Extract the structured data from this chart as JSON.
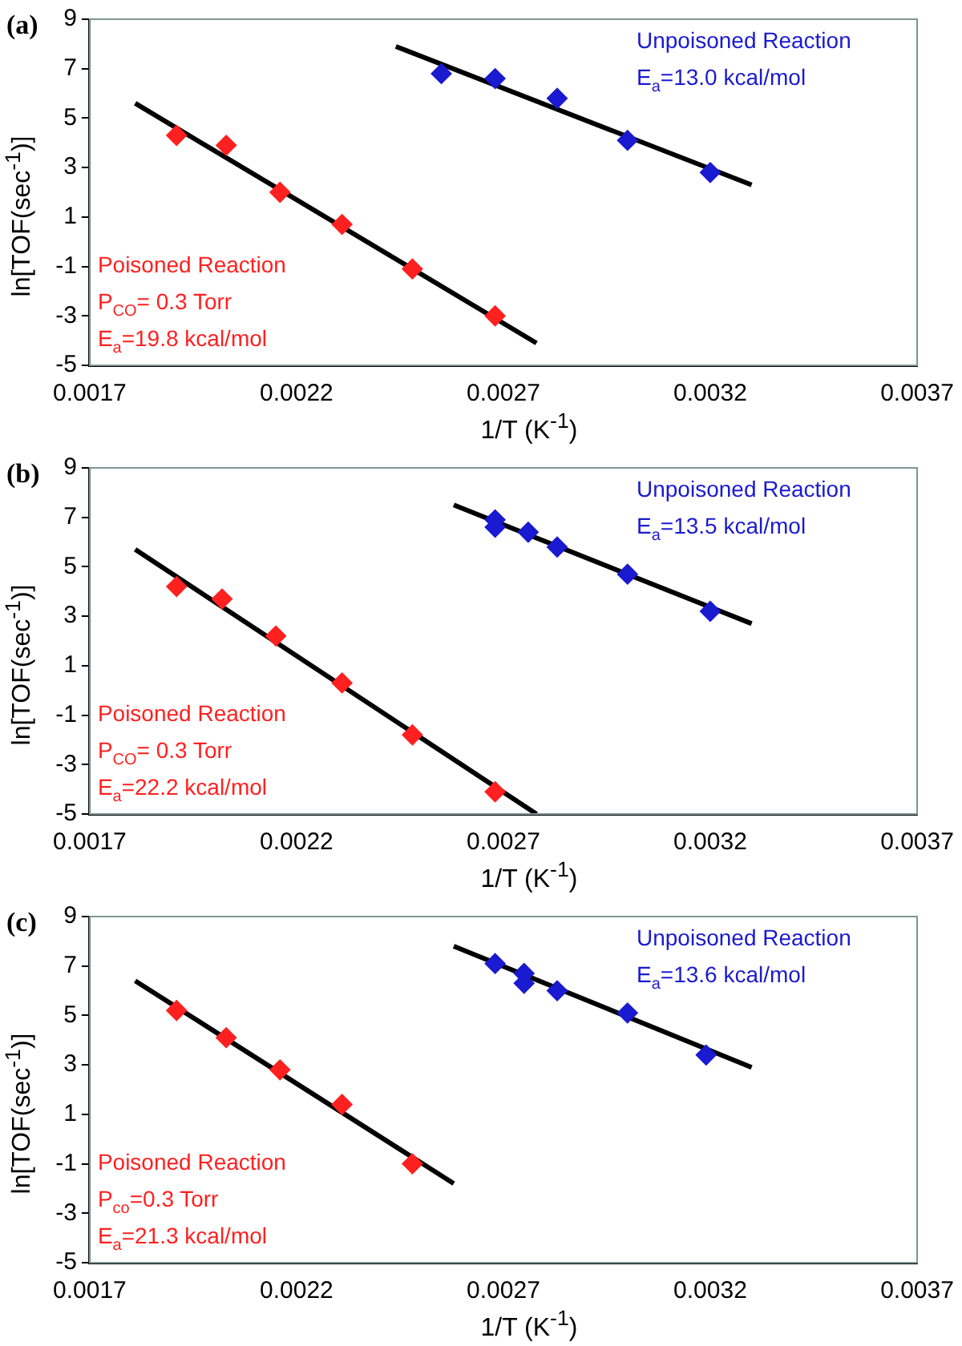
{
  "chart_data": [
    {
      "type": "scatter",
      "title": "(a)",
      "xlabel": "1/T (K$^{-1}$)",
      "ylabel": "ln[TOF(sec$^{-1}$)]",
      "xlim": [
        0.0017,
        0.0037
      ],
      "xticks": [
        0.0017,
        0.0022,
        0.0027,
        0.0032,
        0.0037
      ],
      "ylim": [
        -5,
        9
      ],
      "yticks": [
        -5,
        -3,
        -1,
        1,
        3,
        5,
        7,
        9
      ],
      "grid": false,
      "legend": false,
      "marker": "diamond",
      "annotations": [
        "P$_{CO}$= 0.3 Torr",
        "E$_{a}$=19.8 kcal/mol",
        "E$_{a}$=13.0 kcal/mol"
      ],
      "series": [
        {
          "name": "Poisoned Reaction",
          "color": "#ff2020",
          "x": [
            0.00191,
            0.00203,
            0.00216,
            0.00231,
            0.00248,
            0.00268
          ],
          "values": [
            4.3,
            3.9,
            2.0,
            0.7,
            -1.1,
            -3.0
          ]
        },
        {
          "name": "Unpoisoned Reaction",
          "color": "#1a1ad0",
          "x": [
            0.00255,
            0.00268,
            0.00283,
            0.003,
            0.0032
          ],
          "values": [
            6.8,
            6.6,
            5.8,
            4.1,
            2.8
          ]
        },
        {
          "type": "line",
          "color": "#000000",
          "marker": "none",
          "x": [
            0.00181,
            0.00278
          ],
          "values": [
            5.6,
            -4.1
          ]
        },
        {
          "type": "line",
          "color": "#000000",
          "marker": "none",
          "x": [
            0.00244,
            0.0033
          ],
          "values": [
            7.9,
            2.3
          ]
        }
      ]
    },
    {
      "type": "scatter",
      "title": "(b)",
      "xlabel": "1/T (K$^{-1}$)",
      "ylabel": "ln[TOF(sec$^{-1}$)]",
      "xlim": [
        0.0017,
        0.0037
      ],
      "xticks": [
        0.0017,
        0.0022,
        0.0027,
        0.0032,
        0.0037
      ],
      "ylim": [
        -5,
        9
      ],
      "yticks": [
        -5,
        -3,
        -1,
        1,
        3,
        5,
        7,
        9
      ],
      "grid": false,
      "legend": false,
      "marker": "diamond",
      "annotations": [
        "P$_{CO}$= 0.3 Torr",
        "E$_{a}$=22.2 kcal/mol",
        "E$_{a}$=13.5 kcal/mol"
      ],
      "series": [
        {
          "name": "Poisoned Reaction",
          "color": "#ff2020",
          "x": [
            0.00191,
            0.00202,
            0.00215,
            0.00231,
            0.00248,
            0.00268
          ],
          "values": [
            4.2,
            3.7,
            2.2,
            0.3,
            -1.8,
            -4.1
          ]
        },
        {
          "name": "Unpoisoned Reaction",
          "color": "#1a1ad0",
          "x": [
            0.00268,
            0.00268,
            0.00276,
            0.00283,
            0.003,
            0.0032
          ],
          "values": [
            6.9,
            6.6,
            6.4,
            5.8,
            4.7,
            3.2
          ]
        },
        {
          "type": "line",
          "color": "#000000",
          "marker": "none",
          "x": [
            0.00181,
            0.00278
          ],
          "values": [
            5.7,
            -5.0
          ]
        },
        {
          "type": "line",
          "color": "#000000",
          "marker": "none",
          "x": [
            0.00258,
            0.0033
          ],
          "values": [
            7.5,
            2.7
          ]
        }
      ]
    },
    {
      "type": "scatter",
      "title": "(c)",
      "xlabel": "1/T (K$^{-1}$)",
      "ylabel": "ln[TOF(sec$^{-1}$)]",
      "xlim": [
        0.0017,
        0.0037
      ],
      "xticks": [
        0.0017,
        0.0022,
        0.0027,
        0.0032,
        0.0037
      ],
      "ylim": [
        -5,
        9
      ],
      "yticks": [
        -5,
        -3,
        -1,
        1,
        3,
        5,
        7,
        9
      ],
      "grid": false,
      "legend": false,
      "marker": "diamond",
      "annotations": [
        "P$_{co}$=0.3 Torr",
        "E$_{a}$=21.3 kcal/mol",
        "E$_{a}$=13.6 kcal/mol"
      ],
      "series": [
        {
          "name": "Poisoned Reaction",
          "color": "#ff2020",
          "x": [
            0.00191,
            0.00203,
            0.00216,
            0.00231,
            0.00248
          ],
          "values": [
            5.2,
            4.1,
            2.8,
            1.4,
            -1.0
          ]
        },
        {
          "name": "Unpoisoned Reaction",
          "color": "#1a1ad0",
          "x": [
            0.00268,
            0.00275,
            0.00275,
            0.00283,
            0.003,
            0.00319
          ],
          "values": [
            7.1,
            6.7,
            6.3,
            6.0,
            5.1,
            3.4
          ]
        },
        {
          "type": "line",
          "color": "#000000",
          "marker": "none",
          "x": [
            0.00181,
            0.00258
          ],
          "values": [
            6.4,
            -1.8
          ]
        },
        {
          "type": "line",
          "color": "#000000",
          "marker": "none",
          "x": [
            0.00258,
            0.0033
          ],
          "values": [
            7.8,
            2.9
          ]
        }
      ]
    }
  ]
}
